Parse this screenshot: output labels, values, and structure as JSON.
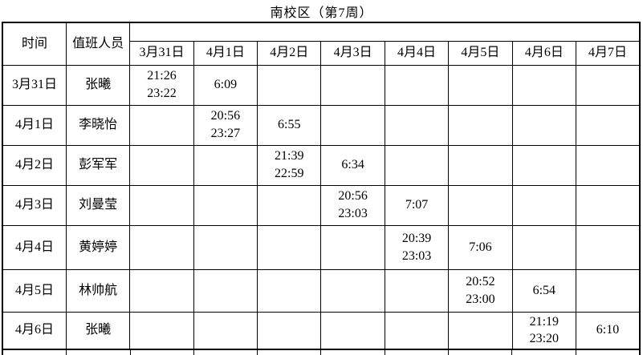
{
  "title": "南校区（第7周）",
  "table": {
    "corner_headers": [
      "时间",
      "值班人员"
    ],
    "date_headers": [
      "3月31日",
      "4月1日",
      "4月2日",
      "4月3日",
      "4月4日",
      "4月5日",
      "4月6日",
      "4月7日"
    ],
    "rows": [
      {
        "date": "3月31日",
        "person": "张曦",
        "cells": [
          "21:26\n23:22",
          "6:09",
          "",
          "",
          "",
          "",
          "",
          ""
        ]
      },
      {
        "date": "4月1日",
        "person": "李晓怡",
        "cells": [
          "",
          "20:56\n23:27",
          "6:55",
          "",
          "",
          "",
          "",
          ""
        ]
      },
      {
        "date": "4月2日",
        "person": "彭军军",
        "cells": [
          "",
          "",
          "21:39\n22:59",
          "6:34",
          "",
          "",
          "",
          ""
        ]
      },
      {
        "date": "4月3日",
        "person": "刘曼莹",
        "cells": [
          "",
          "",
          "",
          "20:56\n23:03",
          "7:07",
          "",
          "",
          ""
        ]
      },
      {
        "date": "4月4日",
        "person": "黄婷婷",
        "cells": [
          "",
          "",
          "",
          "",
          "20:39\n23:03",
          "7:06",
          "",
          ""
        ]
      },
      {
        "date": "4月5日",
        "person": "林帅航",
        "cells": [
          "",
          "",
          "",
          "",
          "",
          "20:52\n23:00",
          "6:54",
          ""
        ]
      },
      {
        "date": "4月6日",
        "person": "张曦",
        "cells": [
          "",
          "",
          "",
          "",
          "",
          "",
          "21:19\n23:20",
          "6:10"
        ]
      }
    ]
  },
  "colors": {
    "border": "#000000",
    "text": "#000000",
    "background": "#ffffff"
  }
}
